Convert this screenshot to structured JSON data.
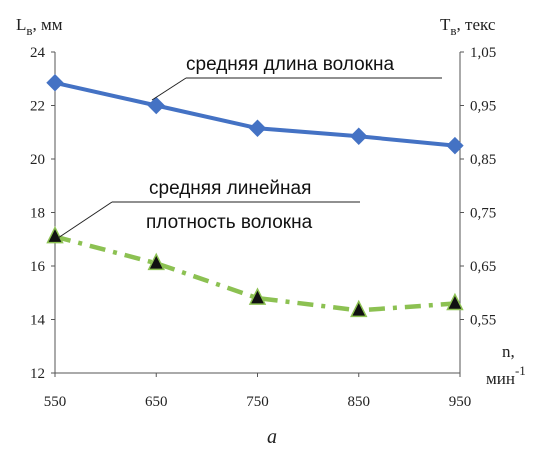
{
  "chart_data": {
    "type": "line",
    "x": [
      550,
      650,
      750,
      850,
      945
    ],
    "xlim": [
      550,
      950
    ],
    "xticks": [
      "550",
      "650",
      "750",
      "850",
      "950"
    ],
    "x_axis_label": "n,",
    "x_axis_unit": "мин",
    "x_axis_unit_exp": "-1",
    "left_axis": {
      "label_main": "L",
      "label_sub": "в",
      "label_unit": ", мм",
      "ylim": [
        12,
        24
      ],
      "ticks": [
        "12",
        "14",
        "16",
        "18",
        "20",
        "22",
        "24"
      ]
    },
    "right_axis": {
      "label_main": "T",
      "label_sub": "в",
      "label_unit": ", текс",
      "ylim": [
        0.45,
        1.05
      ],
      "ticks": [
        "0,55",
        "0,65",
        "0,75",
        "0,85",
        "0,95",
        "1,05"
      ],
      "tick_values": [
        0.55,
        0.65,
        0.75,
        0.85,
        0.95,
        1.05
      ]
    },
    "series": [
      {
        "name": "средняя длина волокна",
        "axis": "left",
        "values": [
          22.85,
          22.0,
          21.15,
          20.85,
          20.5
        ],
        "color": "#4472c4",
        "marker": "diamond",
        "style": "solid"
      },
      {
        "name": "средняя линейная плотность волокна",
        "name_line1": "средняя линейная",
        "name_line2": "плотность волокна",
        "axis": "right",
        "values": [
          0.705,
          0.655,
          0.59,
          0.567,
          0.58
        ],
        "color": "#8cc152",
        "marker": "triangle",
        "style": "dash-dot"
      }
    ],
    "grid": false
  },
  "caption": "а"
}
